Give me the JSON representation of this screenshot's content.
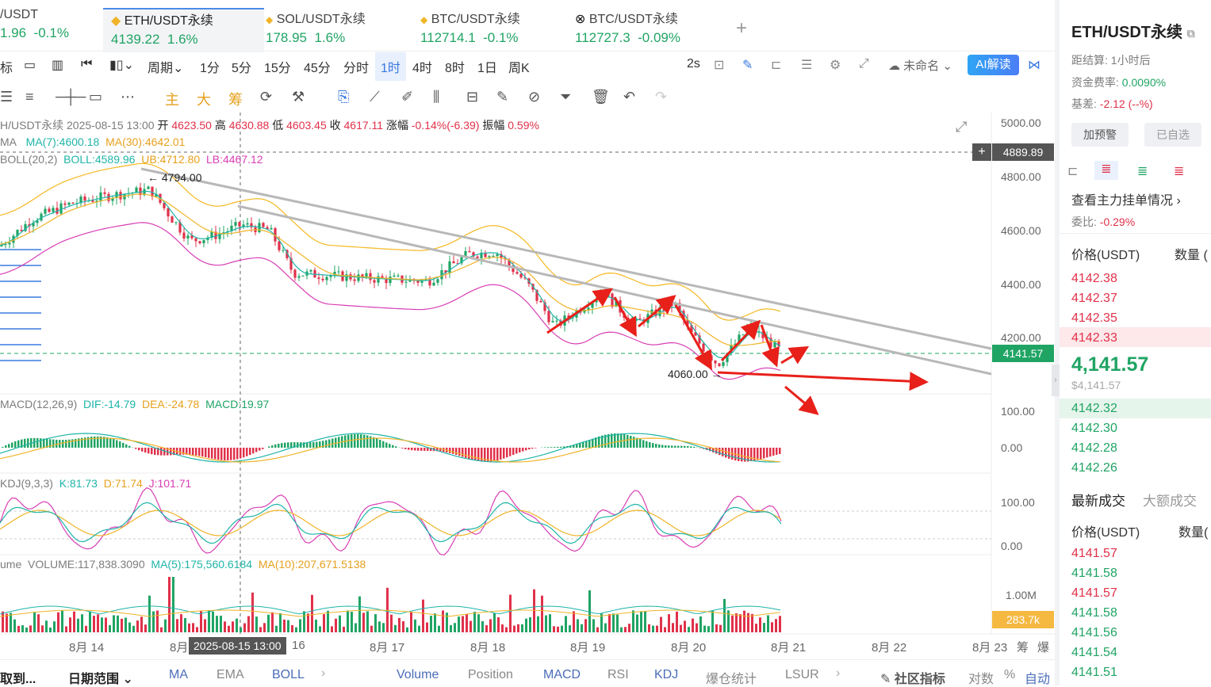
{
  "tabs": [
    {
      "name": "/USDT",
      "price": "1.96",
      "change": "-0.1%",
      "trend": "green"
    },
    {
      "name": "ETH/USDT永续",
      "price": "4139.22",
      "change": "1.6%",
      "trend": "green",
      "active": true
    },
    {
      "name": "SOL/USDT永续",
      "price": "178.95",
      "change": "1.6%",
      "trend": "green"
    },
    {
      "name": "BTC/USDT永续",
      "price": "112714.1",
      "change": "-0.1%",
      "trend": "green"
    },
    {
      "name": "BTC/USDT永续",
      "price": "112727.3",
      "change": "-0.09%",
      "trend": "green"
    }
  ],
  "add_tab": "+",
  "toolbar": {
    "items": [
      "标",
      "周期",
      "1分",
      "5分",
      "15分",
      "45分",
      "分时",
      "1时",
      "4时",
      "8时",
      "1日",
      "周K"
    ],
    "active": "1时",
    "interval": "2s",
    "account": "未命名",
    "ai": "AI解读"
  },
  "drawing_icons": [
    "主",
    "大",
    "筹"
  ],
  "info": {
    "symbol": "H/USDT永续",
    "datetime": "2025-08-15 13:00",
    "open_label": "开",
    "open": "4623.50",
    "high_label": "高",
    "high": "4630.88",
    "low_label": "低",
    "low": "4603.45",
    "close_label": "收",
    "close": "4617.11",
    "chg_label": "涨幅",
    "chg": "-0.14%(-6.39)",
    "amp_label": "振幅",
    "amp": "0.59%"
  },
  "ma_line": {
    "prefix": "MA",
    "ma7": "MA(7):4600.18",
    "ma30": "MA(30):4642.01"
  },
  "boll_line": {
    "prefix": "BOLL(20,2)",
    "boll": "BOLL:4589.96",
    "ub": "UB:4712.80",
    "lb": "LB:4467.12"
  },
  "annotations": {
    "high": "← 4794.00",
    "low": "4060.00 →",
    "crosshair_price": "4889.89",
    "last_price": "4141.57"
  },
  "y_axis": [
    "5000.00",
    "4800.00",
    "4600.00",
    "4400.00",
    "4200.00"
  ],
  "macd": {
    "title": "MACD(12,26,9)",
    "dif": "DIF:-14.79",
    "dea": "DEA:-24.78",
    "macd": "MACD:19.97",
    "y": [
      "100.00",
      "0.00"
    ]
  },
  "kdj": {
    "title": "KDJ(9,3,3)",
    "k": "K:81.73",
    "d": "D:71.74",
    "j": "J:101.71",
    "y": [
      "100.00",
      "0.00"
    ]
  },
  "volume": {
    "title": "ume",
    "vol": "VOLUME:117,838.3090",
    "ma5": "MA(5):175,560.6184",
    "ma10": "MA(10):207,671.5138",
    "y": "1.00M",
    "last": "283.7k"
  },
  "x_axis": [
    "8月 14",
    "8月",
    "8月 17",
    "8月 18",
    "8月 19",
    "8月 20",
    "8月 21",
    "8月 22",
    "8月 23"
  ],
  "x_cross": "2025-08-15 13:00",
  "x_extra": "16",
  "x_tail": [
    "筹",
    "爆"
  ],
  "bottom_bar": {
    "left": "取到...",
    "range": "日期范围",
    "indicators_main": [
      "MA",
      "EMA",
      "BOLL"
    ],
    "indicators_sub": [
      "Volume",
      "Position",
      "MACD",
      "RSI",
      "KDJ",
      "爆仓统计",
      "LSUR"
    ],
    "community": "社区指标",
    "log": "对数",
    "pct": "%",
    "auto": "自动"
  },
  "right_panel": {
    "title": "ETH/USDT永续",
    "settle_label": "距结算:",
    "settle": "1小时后",
    "funding_label": "资金费率:",
    "funding": "0.0090%",
    "basis_label": "基差:",
    "basis": "-2.12 (--%)",
    "alert": "加预警",
    "watch": "已自选",
    "orders_link": "查看主力挂单情况",
    "ratio_label": "委比:",
    "ratio": "-0.29%",
    "col_price": "价格(USDT)",
    "col_qty": "数量 (",
    "asks": [
      "4142.38",
      "4142.37",
      "4142.35",
      "4142.33"
    ],
    "mid": "4,141.57",
    "mid_sub": "$4,141.57",
    "bids": [
      "4142.32",
      "4142.30",
      "4142.28",
      "4142.26"
    ],
    "trades_tab": "最新成交",
    "big_tab": "大额成交",
    "col_price2": "价格(USDT)",
    "col_qty2": "数量(",
    "trades": [
      {
        "p": "4141.57",
        "c": "red"
      },
      {
        "p": "4141.58",
        "c": "green"
      },
      {
        "p": "4141.57",
        "c": "red"
      },
      {
        "p": "4141.58",
        "c": "green"
      },
      {
        "p": "4141.56",
        "c": "green"
      },
      {
        "p": "4141.54",
        "c": "green"
      },
      {
        "p": "4141.51",
        "c": "green"
      }
    ]
  },
  "colors": {
    "up": "#20a464",
    "down": "#e0314a",
    "ma7": "#1fb5a8",
    "ma30": "#f0b429",
    "boll_lb": "#d83fb5",
    "trend": "#b8b8b8",
    "arrow": "#e8201a"
  }
}
